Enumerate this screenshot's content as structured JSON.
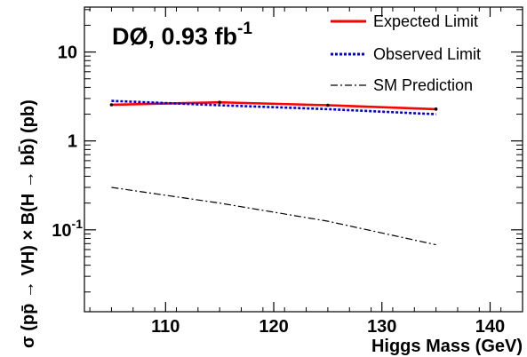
{
  "chart_data": {
    "type": "line",
    "title": "DØ, 0.93 fb",
    "title_superscript": "-1",
    "xlabel": "Higgs Mass (GeV)",
    "ylabel": "σ (pp̄ → VH) × B(H → bb̄) (pb)",
    "x": [
      105,
      115,
      125,
      135
    ],
    "xlim": [
      102.5,
      143
    ],
    "ylim": [
      0.012,
      32
    ],
    "y_scale": "log",
    "x_ticks": [
      {
        "value": 110,
        "label": "110"
      },
      {
        "value": 120,
        "label": "120"
      },
      {
        "value": 130,
        "label": "130"
      },
      {
        "value": 140,
        "label": "140"
      }
    ],
    "y_ticks": [
      {
        "value": 10,
        "label": "10",
        "exp": ""
      },
      {
        "value": 1,
        "label": "1",
        "exp": ""
      },
      {
        "value": 0.1,
        "label": "10",
        "exp": "-1"
      }
    ],
    "grid": false,
    "legend_position": "top-right",
    "series": [
      {
        "name": "Expected Limit",
        "values": [
          2.55,
          2.72,
          2.52,
          2.28
        ],
        "color": "#ff0000",
        "style": "solid"
      },
      {
        "name": "Observed Limit",
        "values": [
          2.82,
          2.52,
          2.28,
          2.0
        ],
        "color": "#0000dd",
        "style": "dotted"
      },
      {
        "name": "SM Prediction",
        "values": [
          0.3,
          0.2,
          0.125,
          0.068
        ],
        "color": "#000000",
        "style": "dashdot"
      }
    ]
  }
}
